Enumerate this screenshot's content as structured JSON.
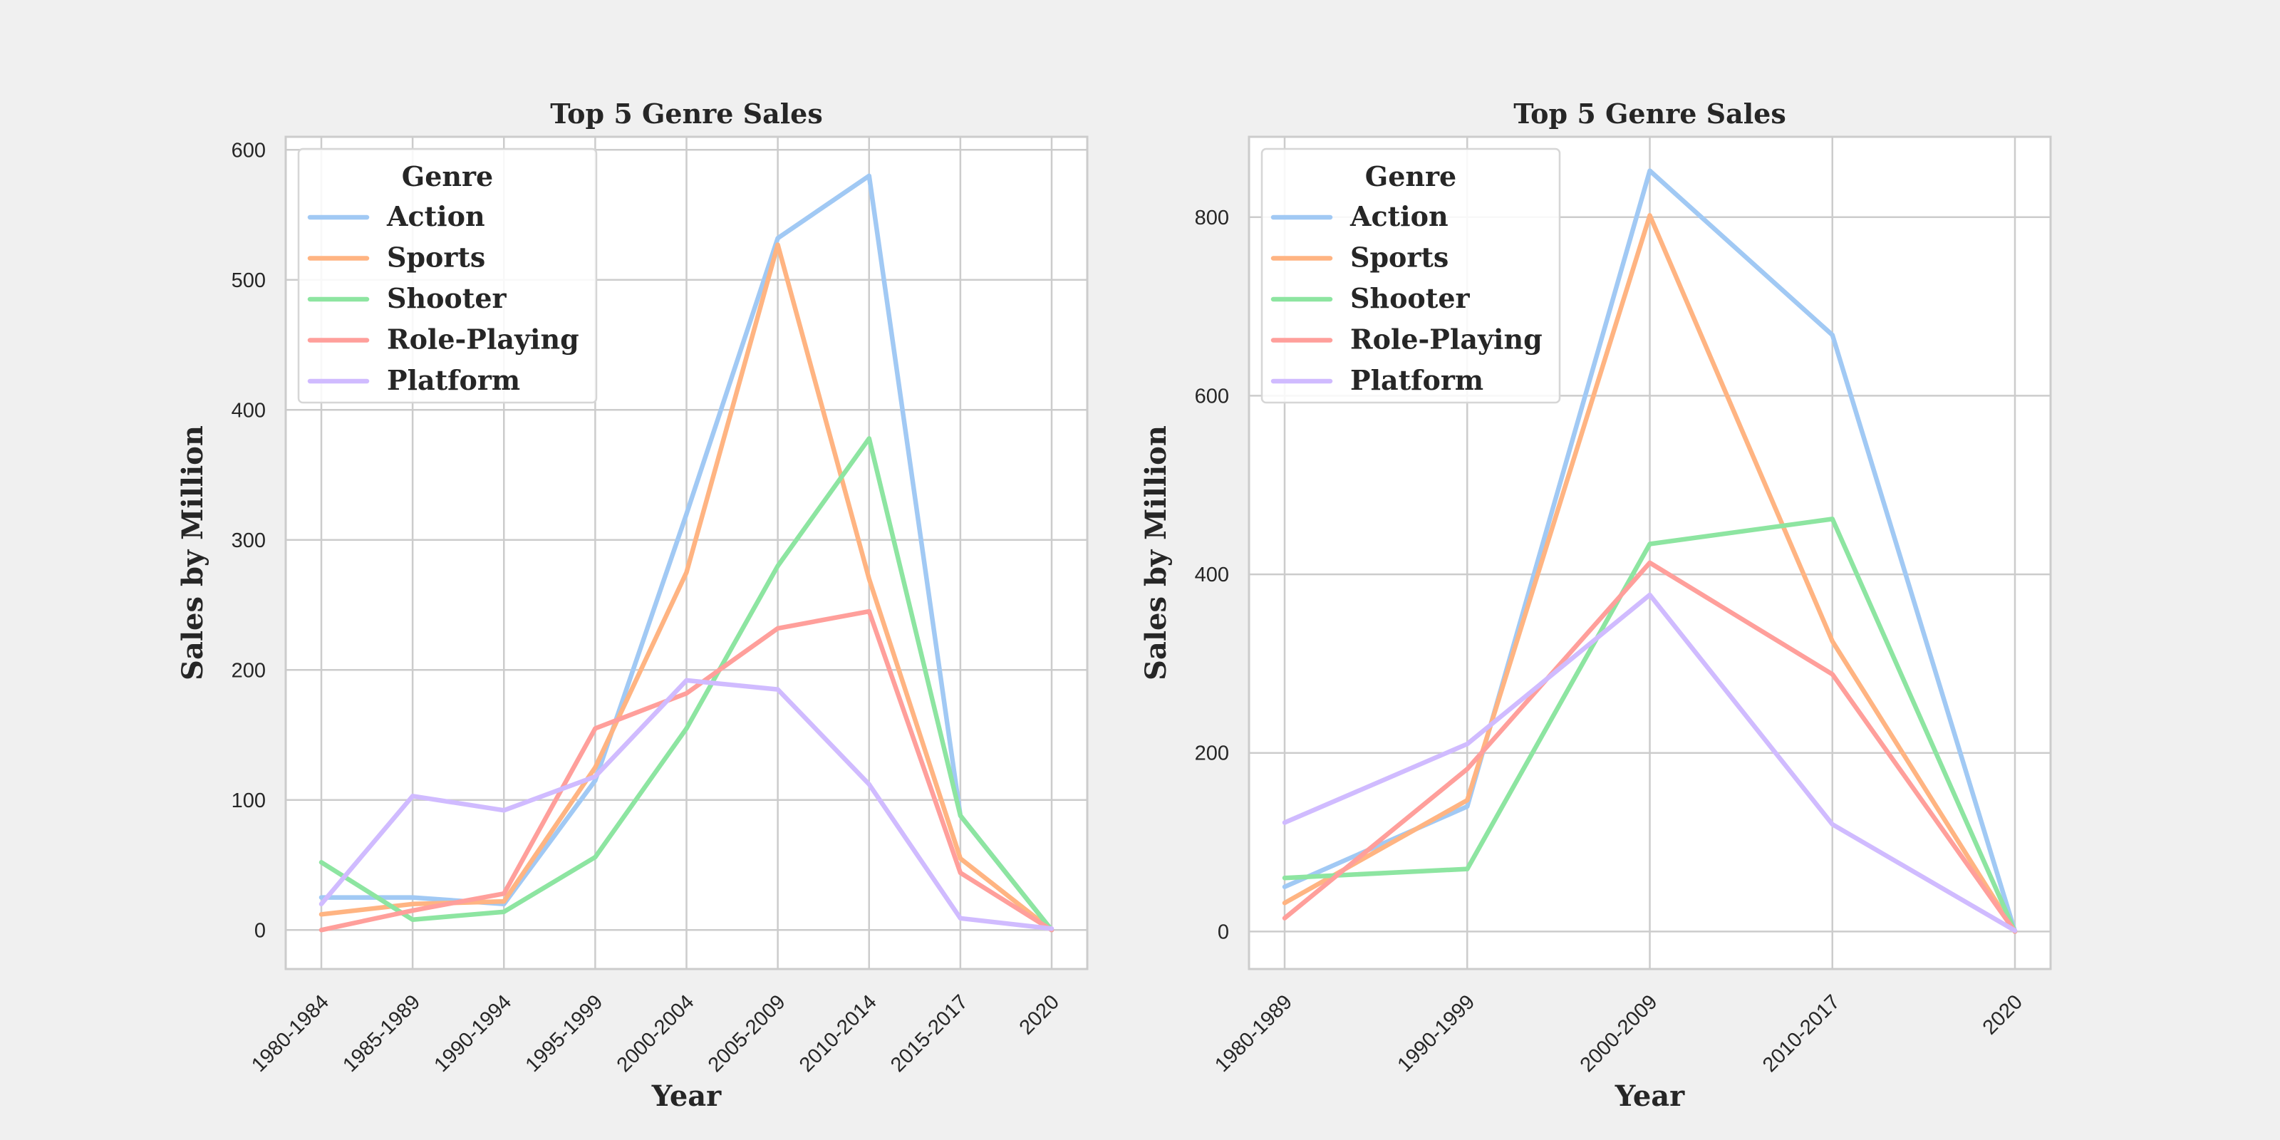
{
  "colors": {
    "Action": "#a1c9f4",
    "Sports": "#ffb482",
    "Shooter": "#8de5a1",
    "Role-Playing": "#ff9f9b",
    "Platform": "#d0bbff"
  },
  "chart_data": [
    {
      "type": "line",
      "title": "Top 5 Genre Sales",
      "xlabel": "Year",
      "ylabel": "Sales by Million",
      "categories": [
        "1980-1984",
        "1985-1989",
        "1990-1994",
        "1995-1999",
        "2000-2004",
        "2005-2009",
        "2010-2014",
        "2015-2017",
        "2020"
      ],
      "ylim": [
        -30,
        610
      ],
      "yticks": [
        0,
        100,
        200,
        300,
        400,
        500,
        600
      ],
      "grid": true,
      "legend": {
        "title": "Genre",
        "placement": "top-left"
      },
      "series": [
        {
          "name": "Action",
          "values": [
            25,
            25,
            20,
            115,
            320,
            532,
            580,
            88,
            0
          ]
        },
        {
          "name": "Sports",
          "values": [
            12,
            20,
            22,
            125,
            275,
            527,
            270,
            55,
            0
          ]
        },
        {
          "name": "Shooter",
          "values": [
            52,
            8,
            14,
            56,
            155,
            280,
            378,
            88,
            0
          ]
        },
        {
          "name": "Role-Playing",
          "values": [
            0,
            15,
            28,
            155,
            182,
            232,
            245,
            44,
            0
          ]
        },
        {
          "name": "Platform",
          "values": [
            20,
            103,
            92,
            118,
            192,
            185,
            112,
            9,
            1
          ]
        }
      ]
    },
    {
      "type": "line",
      "title": "Top 5 Genre Sales",
      "xlabel": "Year",
      "ylabel": "Sales by Million",
      "categories": [
        "1980-1989",
        "1990-1999",
        "2000-2009",
        "2010-2017",
        "2020"
      ],
      "ylim": [
        -42,
        890
      ],
      "yticks": [
        0,
        200,
        400,
        600,
        800
      ],
      "grid": true,
      "legend": {
        "title": "Genre",
        "placement": "top-left"
      },
      "series": [
        {
          "name": "Action",
          "values": [
            50,
            140,
            852,
            668,
            0
          ]
        },
        {
          "name": "Sports",
          "values": [
            32,
            147,
            802,
            325,
            0
          ]
        },
        {
          "name": "Shooter",
          "values": [
            60,
            70,
            434,
            462,
            0
          ]
        },
        {
          "name": "Role-Playing",
          "values": [
            15,
            182,
            413,
            288,
            0
          ]
        },
        {
          "name": "Platform",
          "values": [
            122,
            210,
            377,
            120,
            1
          ]
        }
      ]
    }
  ]
}
